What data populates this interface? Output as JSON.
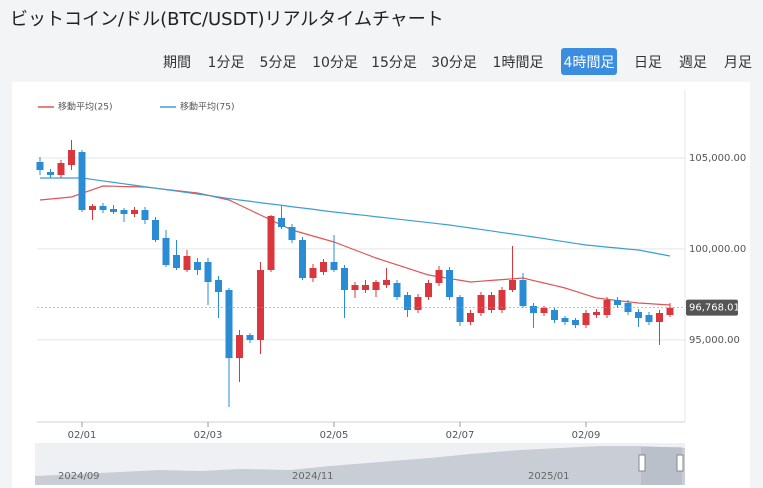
{
  "header": {
    "title": "ビットコイン/ドル(BTC/USDT)リアルタイムチャート",
    "tabs": [
      "期間",
      "1分足",
      "5分足",
      "10分足",
      "15分足",
      "30分足",
      "1時間足",
      "4時間足",
      "日足",
      "週足",
      "月足"
    ],
    "active_tab": 7
  },
  "chart_data": {
    "type": "candlestick",
    "up_color": "#d9363e",
    "down_color": "#2a8dd4",
    "open": [
      104780,
      104230,
      104065,
      104615,
      105330,
      102140,
      102360,
      102195,
      102140,
      101920,
      102140,
      101590,
      100600,
      99665,
      98840,
      99280,
      99280,
      98290,
      97740,
      93995,
      95265,
      94990,
      98840,
      101700,
      101205,
      100490,
      98400,
      98730,
      99280,
      98950,
      97740,
      97740,
      97740,
      98015,
      98125,
      97465,
      96640,
      97355,
      98125,
      98840,
      97355,
      95980,
      96475,
      96640,
      96640,
      97740,
      98290,
      96860,
      96475,
      96640,
      96200,
      96090,
      95815,
      96365,
      96365,
      97190,
      97025,
      96530,
      96365,
      95980,
      96365
    ],
    "high": [
      105055,
      104395,
      104890,
      105990,
      105440,
      102470,
      102525,
      102415,
      102250,
      102305,
      102305,
      101755,
      101040,
      100490,
      99940,
      99500,
      99500,
      98510,
      97850,
      95540,
      95375,
      99280,
      101865,
      102360,
      101370,
      100655,
      99170,
      99445,
      100765,
      99115,
      98180,
      98290,
      98290,
      98950,
      98290,
      97630,
      97520,
      98290,
      99060,
      99005,
      97465,
      96640,
      97630,
      97630,
      97905,
      100160,
      98675,
      97025,
      96860,
      96750,
      96310,
      96200,
      96640,
      96695,
      97355,
      97355,
      97190,
      96695,
      96530,
      96640,
      97025
    ],
    "low": [
      104065,
      103900,
      103900,
      104340,
      102030,
      101590,
      101975,
      101920,
      101480,
      101755,
      101370,
      100380,
      99005,
      98840,
      98730,
      98565,
      96915,
      96200,
      91305,
      92680,
      94825,
      94220,
      98730,
      101095,
      100325,
      98290,
      98180,
      98565,
      98730,
      96200,
      97300,
      97575,
      97355,
      97850,
      97190,
      96255,
      96475,
      97190,
      97960,
      97190,
      95760,
      95815,
      96310,
      96475,
      96475,
      97630,
      96750,
      95650,
      96310,
      95925,
      95815,
      95650,
      95650,
      96200,
      96200,
      96750,
      96365,
      95705,
      95815,
      94715,
      96255
    ],
    "close": [
      104340,
      104065,
      104725,
      105440,
      102140,
      102360,
      102140,
      102030,
      101920,
      102140,
      101590,
      100490,
      99115,
      98950,
      99610,
      98840,
      98180,
      97630,
      93995,
      95265,
      94990,
      98840,
      101810,
      101205,
      100490,
      98400,
      98950,
      99280,
      98840,
      97740,
      98015,
      98015,
      98180,
      98290,
      97355,
      96640,
      97355,
      98125,
      98840,
      97355,
      95980,
      96475,
      97465,
      97465,
      97740,
      98290,
      96860,
      96475,
      96750,
      96090,
      95980,
      95815,
      96475,
      96530,
      97190,
      96915,
      96530,
      96200,
      95980,
      96475,
      96768.01
    ],
    "last_label": "96,768.01",
    "series": [
      {
        "name": "移動平均(25)",
        "color": "#e05555",
        "values": [
          102690,
          102745,
          102800,
          102855,
          103060,
          103260,
          103460,
          103450,
          103430,
          103420,
          103405,
          103340,
          103270,
          103210,
          103140,
          103075,
          102950,
          102820,
          102690,
          102415,
          102140,
          101865,
          101590,
          101315,
          101040,
          100875,
          100710,
          100545,
          100380,
          100160,
          99940,
          99720,
          99500,
          99310,
          99125,
          98940,
          98750,
          98565,
          98470,
          98370,
          98275,
          98180,
          98225,
          98270,
          98310,
          98355,
          98400,
          98260,
          98125,
          97990,
          97850,
          97665,
          97485,
          97300,
          97230,
          97160,
          97095,
          97025,
          96990,
          96950,
          96915
        ]
      },
      {
        "name": "移動平均(75)",
        "color": "#3a9fd6",
        "values": [
          103900,
          103900,
          103900,
          103900,
          103900,
          103820,
          103740,
          103660,
          103580,
          103500,
          103420,
          103340,
          103260,
          103180,
          103100,
          103020,
          102940,
          102860,
          102770,
          102690,
          102620,
          102540,
          102470,
          102400,
          102320,
          102250,
          102180,
          102100,
          102030,
          101970,
          101900,
          101840,
          101770,
          101710,
          101640,
          101580,
          101510,
          101450,
          101380,
          101315,
          101230,
          101150,
          101070,
          100990,
          100900,
          100820,
          100740,
          100655,
          100570,
          100480,
          100390,
          100300,
          100215,
          100160,
          100100,
          100050,
          99990,
          99940,
          99830,
          99720,
          99610
        ]
      }
    ],
    "ylim": [
      90590,
      107090
    ],
    "yticks": [
      {
        "value": 95000,
        "label": "95,000.00"
      },
      {
        "value": 100000,
        "label": "100,000.00"
      },
      {
        "value": 105000,
        "label": "105,000.00"
      }
    ],
    "xticks": [
      {
        "value": 4,
        "label": "02/01"
      },
      {
        "value": 16,
        "label": "02/03"
      },
      {
        "value": 28,
        "label": "02/05"
      },
      {
        "value": 40,
        "label": "02/07"
      },
      {
        "value": 52,
        "label": "02/09"
      }
    ],
    "grid": true
  },
  "navigator": {
    "labels": [
      "2024/09",
      "2024/11",
      "2025/01"
    ]
  }
}
